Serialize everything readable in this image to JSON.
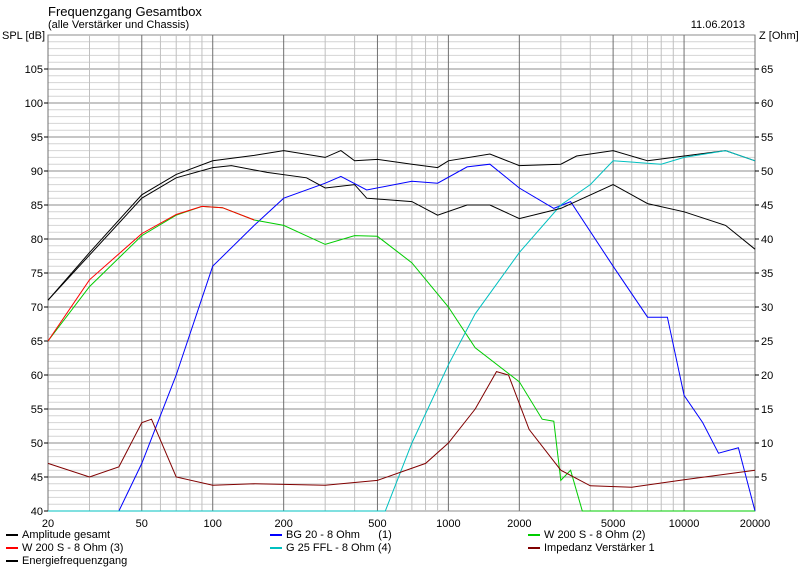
{
  "header": {
    "title": "Frequenzgang Gesamtbox",
    "subtitle": "(alle Verstärker und Chassis)",
    "date": "11.06.2013"
  },
  "chart_data": {
    "type": "line",
    "ylabel": "SPL [dB]",
    "y2label": "Z [Ohm]",
    "xscale": "log",
    "xlim": [
      20,
      20000
    ],
    "ylim": [
      40,
      110
    ],
    "y2lim": [
      0,
      70
    ],
    "xticks": [
      20,
      50,
      100,
      200,
      500,
      1000,
      2000,
      5000,
      10000,
      20000
    ],
    "yticks": [
      40,
      45,
      50,
      55,
      60,
      65,
      70,
      75,
      80,
      85,
      90,
      95,
      100,
      105
    ],
    "y2ticks": [
      5,
      10,
      15,
      20,
      25,
      30,
      35,
      40,
      45,
      50,
      55,
      60,
      65
    ],
    "grid": true,
    "legend_position": "bottom",
    "series": [
      {
        "name": "Amplitude gesamt",
        "color": "#000000",
        "axis": "left",
        "x": [
          20,
          30,
          50,
          70,
          100,
          150,
          200,
          300,
          350,
          400,
          500,
          700,
          900,
          1000,
          1500,
          2000,
          3000,
          3500,
          5000,
          7000,
          10000,
          15000,
          20000
        ],
        "y": [
          71,
          78,
          86.5,
          89.5,
          91.5,
          92.3,
          93,
          92,
          93,
          91.5,
          91.7,
          91,
          90.5,
          91.5,
          92.5,
          90.8,
          91,
          92.2,
          93,
          91.5,
          92.2,
          93,
          91.5
        ]
      },
      {
        "name": "BG 20 - 8 Ohm      (1)",
        "color": "#0000ff",
        "axis": "left",
        "x": [
          20,
          40,
          50,
          70,
          100,
          150,
          200,
          300,
          350,
          450,
          700,
          900,
          1200,
          1500,
          2000,
          2800,
          3300,
          5000,
          7000,
          8500,
          10000,
          12000,
          14000,
          17000,
          20000
        ],
        "y": [
          40,
          40,
          47,
          60,
          76,
          82,
          86,
          88.2,
          89.2,
          87.2,
          88.5,
          88.2,
          90.6,
          91,
          87.5,
          84.5,
          85.5,
          76,
          68.5,
          68.5,
          57,
          53,
          48.5,
          49.3,
          40
        ]
      },
      {
        "name": "W 200 S - 8 Ohm (2)",
        "color": "#00cc00",
        "axis": "left",
        "x": [
          20,
          30,
          50,
          70,
          90,
          110,
          150,
          200,
          300,
          400,
          500,
          700,
          1000,
          1300,
          2000,
          2500,
          2800,
          3000,
          3300,
          3700,
          20000
        ],
        "y": [
          65,
          73,
          80.5,
          83.5,
          84.8,
          84.6,
          82.8,
          82,
          79.2,
          80.5,
          80.4,
          76.5,
          70,
          64,
          59,
          53.5,
          53.2,
          44.5,
          46,
          40,
          40
        ]
      },
      {
        "name": "W 200 S - 8 Ohm (3)",
        "color": "#ff0000",
        "axis": "left",
        "x": [
          20,
          30,
          50,
          70,
          90,
          110,
          150
        ],
        "y": [
          65,
          74,
          80.8,
          83.6,
          84.8,
          84.6,
          82.8
        ]
      },
      {
        "name": "G 25 FFL - 8 Ohm (4)",
        "color": "#00c0c0",
        "axis": "left",
        "x": [
          20,
          540,
          700,
          1000,
          1300,
          2000,
          3000,
          4000,
          5000,
          8000,
          10000,
          15000,
          20000
        ],
        "y": [
          40,
          40,
          50,
          61.5,
          69,
          78,
          85,
          88,
          91.5,
          91,
          92,
          93,
          91.5
        ]
      },
      {
        "name": "Impedanz Verstärker 1",
        "color": "#800000",
        "axis": "right",
        "x": [
          20,
          30,
          40,
          50,
          55,
          70,
          100,
          150,
          300,
          500,
          800,
          1000,
          1300,
          1600,
          1800,
          2200,
          3000,
          4000,
          6000,
          10000,
          20000
        ],
        "y": [
          7,
          5,
          6.5,
          13,
          13.5,
          5,
          3.8,
          4,
          3.8,
          4.5,
          7,
          10,
          15,
          20.5,
          20,
          12,
          6,
          3.7,
          3.5,
          4.6,
          6
        ]
      },
      {
        "name": "Energiefrequenzgang",
        "color": "#000000",
        "axis": "left",
        "x": [
          20,
          50,
          70,
          100,
          120,
          170,
          250,
          300,
          400,
          450,
          700,
          900,
          1200,
          1500,
          2000,
          3000,
          5000,
          7000,
          10000,
          15000,
          20000
        ],
        "y": [
          71,
          86,
          89,
          90.5,
          90.8,
          89.8,
          89,
          87.5,
          88,
          86,
          85.5,
          83.5,
          85,
          85,
          83,
          84.5,
          88,
          85.2,
          84,
          82,
          78.5
        ]
      }
    ]
  }
}
